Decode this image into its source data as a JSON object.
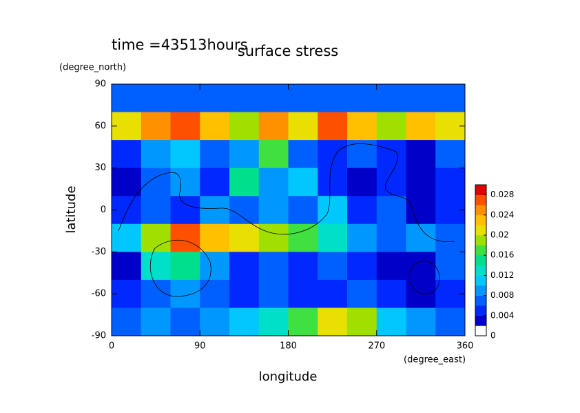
{
  "chart_data": {
    "type": "heatmap",
    "title": "surface stress",
    "annotation": "time =43513hours",
    "x_label": "longitude",
    "y_label": "latitude",
    "x_unit": "(degree_east)",
    "y_unit": "(degree_north)",
    "x": [
      15,
      45,
      75,
      105,
      135,
      165,
      195,
      225,
      255,
      285,
      315,
      345
    ],
    "y": [
      80,
      60,
      40,
      20,
      0,
      -20,
      -40,
      -60,
      -80
    ],
    "z": [
      [
        0.006,
        0.006,
        0.006,
        0.006,
        0.006,
        0.006,
        0.006,
        0.006,
        0.006,
        0.006,
        0.006,
        0.006
      ],
      [
        0.02,
        0.024,
        0.026,
        0.022,
        0.018,
        0.024,
        0.02,
        0.026,
        0.022,
        0.018,
        0.022,
        0.02
      ],
      [
        0.004,
        0.008,
        0.01,
        0.006,
        0.008,
        0.016,
        0.006,
        0.004,
        0.006,
        0.004,
        0.002,
        0.006
      ],
      [
        0.002,
        0.006,
        0.008,
        0.004,
        0.014,
        0.008,
        0.01,
        0.004,
        0.002,
        0.004,
        0.002,
        0.004
      ],
      [
        0.004,
        0.006,
        0.004,
        0.008,
        0.006,
        0.008,
        0.006,
        0.01,
        0.004,
        0.006,
        0.002,
        0.004
      ],
      [
        0.01,
        0.018,
        0.026,
        0.022,
        0.02,
        0.018,
        0.016,
        0.012,
        0.008,
        0.006,
        0.008,
        0.006
      ],
      [
        0.002,
        0.012,
        0.014,
        0.008,
        0.004,
        0.006,
        0.004,
        0.006,
        0.004,
        0.002,
        0.002,
        0.006
      ],
      [
        0.004,
        0.006,
        0.008,
        0.006,
        0.004,
        0.006,
        0.004,
        0.004,
        0.006,
        0.004,
        0.002,
        0.004
      ],
      [
        0.006,
        0.008,
        0.006,
        0.008,
        0.01,
        0.012,
        0.016,
        0.02,
        0.018,
        0.01,
        0.008,
        0.006
      ]
    ],
    "xlim": [
      0,
      360
    ],
    "xticks": [
      0,
      90,
      180,
      270,
      360
    ],
    "ylim": [
      -90,
      90
    ],
    "yticks": [
      -90,
      -60,
      -30,
      0,
      30,
      60,
      90
    ],
    "levels": [
      0,
      0.002,
      0.004,
      0.006,
      0.008,
      0.01,
      0.012,
      0.014,
      0.016,
      0.018,
      0.02,
      0.022,
      0.024,
      0.026,
      0.028,
      0.03
    ],
    "colors": [
      "#ffffff",
      "#0000c8",
      "#0028ff",
      "#0060ff",
      "#0098ff",
      "#00c8ff",
      "#00e0c8",
      "#00e08c",
      "#40e040",
      "#a0e000",
      "#e8e000",
      "#ffc000",
      "#ff9000",
      "#ff5000",
      "#e00000"
    ],
    "clim": [
      0,
      0.03
    ],
    "cticks": [
      0,
      0.004,
      0.008,
      0.012,
      0.016,
      0.02,
      0.024,
      0.028
    ]
  }
}
